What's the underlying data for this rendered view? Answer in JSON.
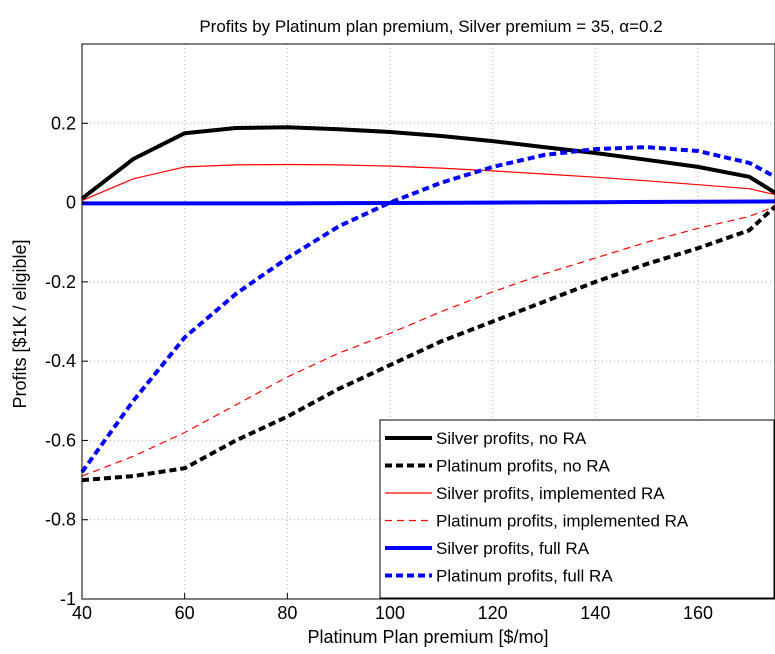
{
  "chart_data": {
    "type": "line",
    "title": "Profits by Platinum plan premium, Silver premium = 35, α=0.2",
    "xlabel": "Platinum Plan premium [$/mo]",
    "ylabel": "Profits [$1K / eligible]",
    "xlim": [
      40,
      175
    ],
    "ylim": [
      -1,
      0.4
    ],
    "xticks": [
      40,
      60,
      80,
      100,
      120,
      140,
      160
    ],
    "yticks": [
      -1,
      -0.8,
      -0.6,
      -0.4,
      -0.2,
      0,
      0.2
    ],
    "ytick_labels": [
      "-1",
      "-0.8",
      "-0.6",
      "-0.4",
      "-0.2",
      "0",
      "0.2"
    ],
    "grid": true,
    "legend_position": "bottom-right",
    "series": [
      {
        "name": "Silver profits, no RA",
        "color": "#000000",
        "style": "solid",
        "weight": "thick",
        "x": [
          40,
          50,
          60,
          70,
          80,
          90,
          100,
          110,
          120,
          130,
          140,
          150,
          160,
          170,
          175
        ],
        "y": [
          0.01,
          0.11,
          0.175,
          0.188,
          0.19,
          0.185,
          0.178,
          0.168,
          0.155,
          0.14,
          0.125,
          0.108,
          0.09,
          0.065,
          0.025
        ]
      },
      {
        "name": "Platinum profits, no RA",
        "color": "#000000",
        "style": "dashed",
        "weight": "thick",
        "x": [
          40,
          50,
          60,
          70,
          80,
          90,
          100,
          110,
          120,
          130,
          140,
          150,
          160,
          170,
          175
        ],
        "y": [
          -0.7,
          -0.69,
          -0.67,
          -0.6,
          -0.54,
          -0.47,
          -0.41,
          -0.35,
          -0.3,
          -0.25,
          -0.2,
          -0.155,
          -0.115,
          -0.07,
          -0.01
        ]
      },
      {
        "name": "Silver profits, implemented RA",
        "color": "#ff0000",
        "style": "solid",
        "weight": "thin",
        "x": [
          40,
          50,
          60,
          70,
          80,
          90,
          100,
          110,
          120,
          130,
          140,
          150,
          160,
          170,
          175
        ],
        "y": [
          0.005,
          0.06,
          0.09,
          0.095,
          0.096,
          0.095,
          0.092,
          0.087,
          0.08,
          0.072,
          0.064,
          0.055,
          0.045,
          0.035,
          0.02
        ]
      },
      {
        "name": "Platinum profits, implemented RA",
        "color": "#ff0000",
        "style": "dashed",
        "weight": "thin",
        "x": [
          40,
          50,
          60,
          70,
          80,
          90,
          100,
          110,
          120,
          130,
          140,
          150,
          160,
          170,
          175
        ],
        "y": [
          -0.69,
          -0.64,
          -0.58,
          -0.51,
          -0.44,
          -0.38,
          -0.33,
          -0.275,
          -0.225,
          -0.18,
          -0.14,
          -0.1,
          -0.065,
          -0.035,
          -0.01
        ]
      },
      {
        "name": "Silver profits, full RA",
        "color": "#0000ff",
        "style": "solid",
        "weight": "thick",
        "x": [
          40,
          60,
          80,
          100,
          120,
          140,
          160,
          175
        ],
        "y": [
          -0.002,
          -0.002,
          -0.002,
          -0.001,
          0.0,
          0.001,
          0.002,
          0.003
        ]
      },
      {
        "name": "Platinum profits, full RA",
        "color": "#0000ff",
        "style": "dashed",
        "weight": "thick",
        "x": [
          40,
          50,
          60,
          70,
          80,
          90,
          100,
          110,
          120,
          130,
          140,
          150,
          160,
          170,
          175
        ],
        "y": [
          -0.68,
          -0.5,
          -0.34,
          -0.23,
          -0.14,
          -0.06,
          0.0,
          0.05,
          0.09,
          0.12,
          0.135,
          0.14,
          0.13,
          0.1,
          0.065
        ]
      }
    ]
  }
}
